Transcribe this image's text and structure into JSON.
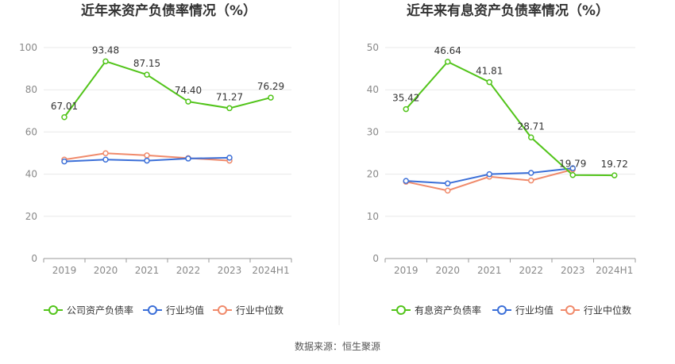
{
  "source_note": "数据来源：恒生聚源",
  "chart_data": [
    {
      "type": "line",
      "title": "近年来资产负债率情况（%）",
      "xlabel": "",
      "ylabel": "",
      "categories": [
        "2019",
        "2020",
        "2021",
        "2022",
        "2023",
        "2024H1"
      ],
      "ylim": [
        0,
        100
      ],
      "yticks": [
        0,
        20,
        40,
        60,
        80,
        100
      ],
      "grid": true,
      "legend_position": "bottom",
      "series": [
        {
          "name": "公司资产负债率",
          "color": "#52c41a",
          "labeled": true,
          "values": [
            67.01,
            93.48,
            87.15,
            74.4,
            71.27,
            76.29
          ],
          "labels": [
            "67.01",
            "93.48",
            "87.15",
            "74.40",
            "71.27",
            "76.29"
          ]
        },
        {
          "name": "行业均值",
          "color": "#3b6fd8",
          "labeled": false,
          "values": [
            46.0,
            46.9,
            46.4,
            47.4,
            47.8,
            null
          ]
        },
        {
          "name": "行业中位数",
          "color": "#f08a6b",
          "labeled": false,
          "values": [
            46.9,
            49.9,
            48.9,
            47.6,
            46.4,
            null
          ]
        }
      ]
    },
    {
      "type": "line",
      "title": "近年来有息资产负债率情况（%）",
      "xlabel": "",
      "ylabel": "",
      "categories": [
        "2019",
        "2020",
        "2021",
        "2022",
        "2023",
        "2024H1"
      ],
      "ylim": [
        0,
        50
      ],
      "yticks": [
        0,
        10,
        20,
        30,
        40,
        50
      ],
      "grid": true,
      "legend_position": "bottom",
      "series": [
        {
          "name": "有息资产负债率",
          "color": "#52c41a",
          "labeled": true,
          "values": [
            35.42,
            46.64,
            41.81,
            28.71,
            19.79,
            19.72
          ],
          "labels": [
            "35.42",
            "46.64",
            "41.81",
            "28.71",
            "19.79",
            "19.72"
          ]
        },
        {
          "name": "行业均值",
          "color": "#3b6fd8",
          "labeled": false,
          "values": [
            18.4,
            17.8,
            20.0,
            20.3,
            21.4,
            null
          ]
        },
        {
          "name": "行业中位数",
          "color": "#f08a6b",
          "labeled": false,
          "values": [
            18.2,
            16.1,
            19.4,
            18.5,
            21.1,
            null
          ]
        }
      ]
    }
  ]
}
